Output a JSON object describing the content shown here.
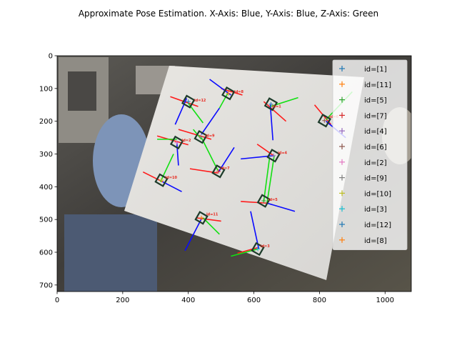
{
  "chart_data": {
    "type": "scatter",
    "title": "Approximate Pose Estimation. X-Axis: Blue, Y-Axis: Blue, Z-Axis: Green",
    "xlabel": "",
    "ylabel": "",
    "xlim": [
      0,
      1080
    ],
    "ylim": [
      720,
      0
    ],
    "x_ticks": [
      0,
      200,
      400,
      600,
      800,
      1000
    ],
    "y_ticks": [
      0,
      100,
      200,
      300,
      400,
      500,
      600,
      700
    ],
    "grid": false,
    "legend_position": "top-right",
    "series": [
      {
        "name": "id=[1]",
        "color": "#1f77b4",
        "points": [
          [
            652,
            148
          ]
        ]
      },
      {
        "name": "id=[11]",
        "color": "#ff7f0e",
        "points": [
          [
            440,
            495
          ]
        ]
      },
      {
        "name": "id=[5]",
        "color": "#2ca02c",
        "points": [
          [
            630,
            443
          ]
        ]
      },
      {
        "name": "id=[7]",
        "color": "#d62728",
        "points": [
          [
            492,
            353
          ]
        ]
      },
      {
        "name": "id=[4]",
        "color": "#9467bd",
        "points": [
          [
            660,
            305
          ]
        ]
      },
      {
        "name": "id=[6]",
        "color": "#8c564b",
        "points": [
          [
            815,
            198
          ]
        ]
      },
      {
        "name": "id=[2]",
        "color": "#e377c2",
        "points": [
          [
            365,
            265
          ]
        ]
      },
      {
        "name": "id=[9]",
        "color": "#7f7f7f",
        "points": [
          [
            438,
            248
          ]
        ]
      },
      {
        "name": "id=[10]",
        "color": "#bcbd22",
        "points": [
          [
            318,
            380
          ]
        ]
      },
      {
        "name": "id=[3]",
        "color": "#17becf",
        "points": [
          [
            612,
            590
          ]
        ]
      },
      {
        "name": "id=[12]",
        "color": "#1f77b4",
        "points": [
          [
            400,
            140
          ]
        ]
      },
      {
        "name": "id=[8]",
        "color": "#ff7f0e",
        "points": [
          [
            522,
            115
          ]
        ]
      }
    ],
    "marker_labels": [
      {
        "text": "id=12",
        "x": 418,
        "y": 140
      },
      {
        "text": "id=8",
        "x": 540,
        "y": 113
      },
      {
        "text": "id=1",
        "x": 655,
        "y": 158
      },
      {
        "text": "id=6",
        "x": 830,
        "y": 190
      },
      {
        "text": "id=9",
        "x": 452,
        "y": 248
      },
      {
        "text": "id=2",
        "x": 380,
        "y": 262
      },
      {
        "text": "id=4",
        "x": 673,
        "y": 300
      },
      {
        "text": "id=7",
        "x": 498,
        "y": 347
      },
      {
        "text": "id=10",
        "x": 330,
        "y": 375
      },
      {
        "text": "id=5",
        "x": 644,
        "y": 443
      },
      {
        "text": "id=11",
        "x": 455,
        "y": 488
      },
      {
        "text": "id=3",
        "x": 620,
        "y": 585
      }
    ],
    "axis_segments": [
      {
        "color": "#ff1a1a",
        "x1": 345,
        "y1": 125,
        "x2": 430,
        "y2": 155
      },
      {
        "color": "#0a0aff",
        "x1": 395,
        "y1": 130,
        "x2": 360,
        "y2": 210
      },
      {
        "color": "#12e012",
        "x1": 400,
        "y1": 145,
        "x2": 445,
        "y2": 205
      },
      {
        "color": "#ff1a1a",
        "x1": 500,
        "y1": 100,
        "x2": 565,
        "y2": 120
      },
      {
        "color": "#0a0aff",
        "x1": 530,
        "y1": 120,
        "x2": 465,
        "y2": 72
      },
      {
        "color": "#12e012",
        "x1": 520,
        "y1": 115,
        "x2": 495,
        "y2": 160
      },
      {
        "color": "#ff1a1a",
        "x1": 630,
        "y1": 140,
        "x2": 698,
        "y2": 200
      },
      {
        "color": "#0a0aff",
        "x1": 650,
        "y1": 150,
        "x2": 658,
        "y2": 258
      },
      {
        "color": "#12e012",
        "x1": 650,
        "y1": 155,
        "x2": 735,
        "y2": 128
      },
      {
        "color": "#ff1a1a",
        "x1": 785,
        "y1": 150,
        "x2": 835,
        "y2": 210
      },
      {
        "color": "#0a0aff",
        "x1": 820,
        "y1": 200,
        "x2": 880,
        "y2": 250
      },
      {
        "color": "#12e012",
        "x1": 820,
        "y1": 195,
        "x2": 900,
        "y2": 110
      },
      {
        "color": "#ff1a1a",
        "x1": 370,
        "y1": 225,
        "x2": 470,
        "y2": 255
      },
      {
        "color": "#0a0aff",
        "x1": 440,
        "y1": 240,
        "x2": 495,
        "y2": 160
      },
      {
        "color": "#12e012",
        "x1": 440,
        "y1": 255,
        "x2": 415,
        "y2": 225
      },
      {
        "color": "#ff1a1a",
        "x1": 305,
        "y1": 245,
        "x2": 400,
        "y2": 272
      },
      {
        "color": "#0a0aff",
        "x1": 365,
        "y1": 265,
        "x2": 370,
        "y2": 335
      },
      {
        "color": "#12e012",
        "x1": 305,
        "y1": 255,
        "x2": 365,
        "y2": 255
      },
      {
        "color": "#ff1a1a",
        "x1": 610,
        "y1": 270,
        "x2": 660,
        "y2": 305
      },
      {
        "color": "#0a0aff",
        "x1": 560,
        "y1": 315,
        "x2": 660,
        "y2": 305
      },
      {
        "color": "#12e012",
        "x1": 648,
        "y1": 310,
        "x2": 630,
        "y2": 445
      },
      {
        "color": "#ff1a1a",
        "x1": 405,
        "y1": 345,
        "x2": 490,
        "y2": 358
      },
      {
        "color": "#0a0aff",
        "x1": 492,
        "y1": 355,
        "x2": 540,
        "y2": 280
      },
      {
        "color": "#12e012",
        "x1": 490,
        "y1": 350,
        "x2": 440,
        "y2": 250
      },
      {
        "color": "#ff1a1a",
        "x1": 262,
        "y1": 355,
        "x2": 322,
        "y2": 385
      },
      {
        "color": "#0a0aff",
        "x1": 322,
        "y1": 385,
        "x2": 380,
        "y2": 415
      },
      {
        "color": "#12e012",
        "x1": 315,
        "y1": 385,
        "x2": 355,
        "y2": 300
      },
      {
        "color": "#ff1a1a",
        "x1": 560,
        "y1": 445,
        "x2": 640,
        "y2": 450
      },
      {
        "color": "#0a0aff",
        "x1": 640,
        "y1": 450,
        "x2": 725,
        "y2": 475
      },
      {
        "color": "#12e012",
        "x1": 640,
        "y1": 450,
        "x2": 662,
        "y2": 305
      },
      {
        "color": "#ff1a1a",
        "x1": 425,
        "y1": 495,
        "x2": 500,
        "y2": 505
      },
      {
        "color": "#0a0aff",
        "x1": 440,
        "y1": 498,
        "x2": 390,
        "y2": 595
      },
      {
        "color": "#12e012",
        "x1": 445,
        "y1": 495,
        "x2": 495,
        "y2": 545
      },
      {
        "color": "#ff1a1a",
        "x1": 550,
        "y1": 603,
        "x2": 615,
        "y2": 585
      },
      {
        "color": "#0a0aff",
        "x1": 615,
        "y1": 590,
        "x2": 590,
        "y2": 475
      },
      {
        "color": "#12e012",
        "x1": 530,
        "y1": 612,
        "x2": 612,
        "y2": 590
      }
    ]
  }
}
